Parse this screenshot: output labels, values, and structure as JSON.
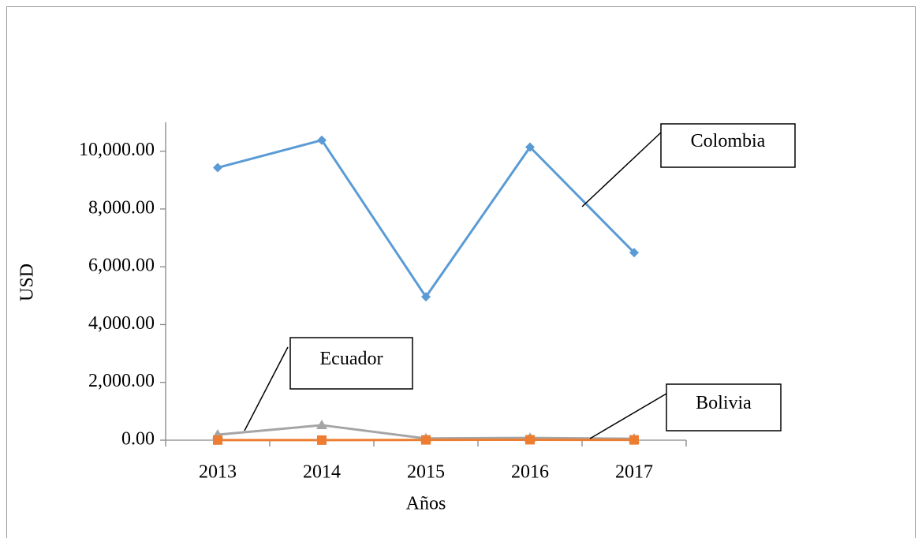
{
  "chart_data": {
    "type": "line",
    "x_label": "Años",
    "y_label": "USD",
    "categories": [
      "2013",
      "2014",
      "2015",
      "2016",
      "2017"
    ],
    "series": [
      {
        "name": "Colombia",
        "color": "#5b9bd5",
        "marker": "diamond",
        "values": [
          9430,
          10380,
          4960,
          10140,
          6490
        ]
      },
      {
        "name": "Bolivia",
        "color": "#ed7d31",
        "marker": "square",
        "values": [
          5,
          3,
          10,
          15,
          10
        ]
      },
      {
        "name": "Ecuador",
        "color": "#a5a5a5",
        "marker": "triangle",
        "values": [
          190,
          520,
          60,
          80,
          50
        ]
      }
    ],
    "ylim": [
      0,
      11000
    ],
    "yticks": [
      {
        "value": 0,
        "label": "0.00"
      },
      {
        "value": 2000,
        "label": "2,000.00"
      },
      {
        "value": 4000,
        "label": "4,000.00"
      },
      {
        "value": 6000,
        "label": "6,000.00"
      },
      {
        "value": 8000,
        "label": "8,000.00"
      },
      {
        "value": 10000,
        "label": "10,000.00"
      }
    ],
    "grid": false
  }
}
